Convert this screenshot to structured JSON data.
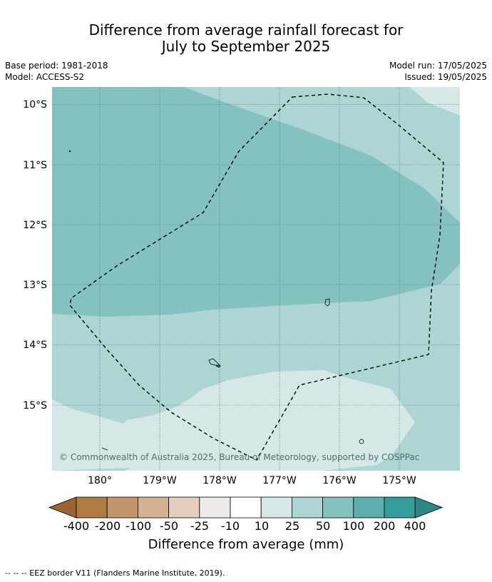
{
  "title": {
    "line1": "Difference from average rainfall forecast for",
    "line2": "July to September 2025"
  },
  "meta": {
    "base_period": "Base period: 1981-2018",
    "model": "Model: ACCESS-S2",
    "model_run": "Model run: 17/05/2025",
    "issued": "Issued: 19/05/2025"
  },
  "map": {
    "lat_labels": [
      "10°S",
      "11°S",
      "12°S",
      "13°S",
      "14°S",
      "15°S"
    ],
    "lon_labels": [
      "180°",
      "179°W",
      "178°W",
      "177°W",
      "176°W",
      "175°W"
    ],
    "copyright": "© Commonwealth of Australia 2025, Bureau of Meteorology, supported by COSPPac",
    "colors": {
      "band_10_25": "#d5e8e7",
      "band_25_50": "#acd5d4",
      "band_50_100": "#84c2c0",
      "boundary_line": "#000000"
    }
  },
  "colorbar": {
    "title": "Difference from average (mm)",
    "tick_labels": [
      "-400",
      "-200",
      "-100",
      "-50",
      "-25",
      "-10",
      "10",
      "25",
      "50",
      "100",
      "200",
      "400"
    ],
    "colors": [
      "#9c6430",
      "#b07b43",
      "#c4956b",
      "#d4b395",
      "#e3cfbc",
      "#eeeae7",
      "#ffffff",
      "#d5e8e7",
      "#acd5d4",
      "#84c2c0",
      "#5daeae",
      "#359c9b",
      "#2a8887"
    ]
  },
  "footnote": "--  --  -- EEZ border V11 (Flanders Marine Institute, 2019)."
}
